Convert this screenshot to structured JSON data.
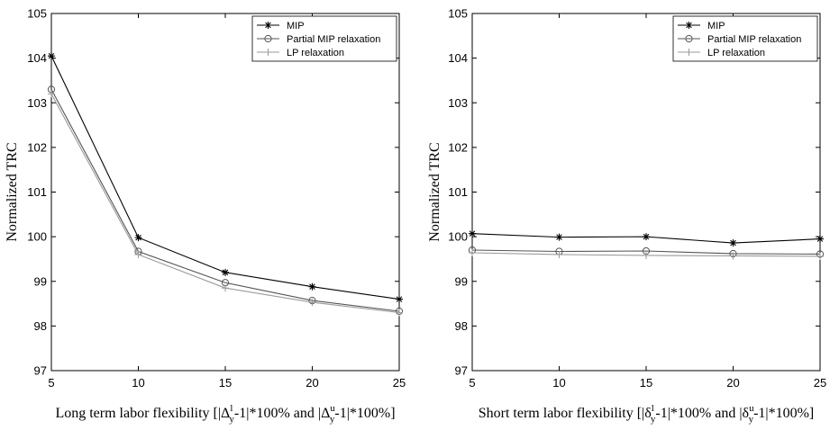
{
  "chart_data": [
    {
      "type": "line",
      "x": [
        5,
        10,
        15,
        20,
        25
      ],
      "xlabel": {
        "text": "Long term labor flexibility [|Δ",
        "sup1": "l",
        "sub1": "y",
        "mid": "-1|*100% and |Δ",
        "sup2": "u",
        "sub2": "y",
        "tail": "-1|*100%]"
      },
      "ylabel": "Normalized TRC",
      "xlim": [
        5,
        25
      ],
      "ylim": [
        97,
        105
      ],
      "xticks": [
        "5",
        "10",
        "15",
        "20",
        "25"
      ],
      "yticks": [
        "97",
        "98",
        "99",
        "100",
        "101",
        "102",
        "103",
        "104",
        "105"
      ],
      "legend_position": "top-right",
      "grid": false,
      "series": [
        {
          "name": "MIP",
          "marker": "star",
          "color": "#000000",
          "values": [
            104.05,
            99.98,
            99.2,
            98.88,
            98.6
          ]
        },
        {
          "name": "Partial MIP relaxation",
          "marker": "circle",
          "color": "#555555",
          "values": [
            103.3,
            99.67,
            98.97,
            98.57,
            98.33
          ]
        },
        {
          "name": "LP relaxation",
          "marker": "plus",
          "color": "#9a9a9a",
          "values": [
            103.2,
            99.6,
            98.85,
            98.53,
            98.3
          ]
        }
      ]
    },
    {
      "type": "line",
      "x": [
        5,
        10,
        15,
        20,
        25
      ],
      "xlabel": {
        "text": "Short term labor flexibility [|δ",
        "sup1": "l",
        "sub1": "y",
        "mid": "-1|*100% and |δ",
        "sup2": "u",
        "sub2": "y",
        "tail": "-1|*100%]"
      },
      "ylabel": "Normalized TRC",
      "xlim": [
        5,
        25
      ],
      "ylim": [
        97,
        105
      ],
      "xticks": [
        "5",
        "10",
        "15",
        "20",
        "25"
      ],
      "yticks": [
        "97",
        "98",
        "99",
        "100",
        "101",
        "102",
        "103",
        "104",
        "105"
      ],
      "legend_position": "top-right",
      "grid": false,
      "series": [
        {
          "name": "MIP",
          "marker": "star",
          "color": "#000000",
          "values": [
            100.07,
            99.99,
            100.0,
            99.86,
            99.95
          ]
        },
        {
          "name": "Partial MIP relaxation",
          "marker": "circle",
          "color": "#555555",
          "values": [
            99.7,
            99.67,
            99.68,
            99.62,
            99.61
          ]
        },
        {
          "name": "LP relaxation",
          "marker": "plus",
          "color": "#9a9a9a",
          "values": [
            99.64,
            99.6,
            99.58,
            99.57,
            99.56
          ]
        }
      ]
    }
  ]
}
